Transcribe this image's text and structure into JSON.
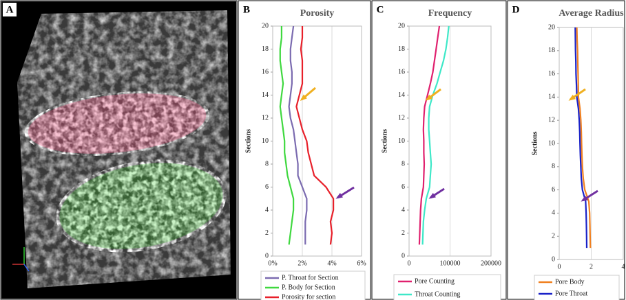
{
  "image_panel": {
    "label": "A"
  },
  "chart_data": [
    {
      "type": "line",
      "panel": "B",
      "title": "Porosity",
      "ylabel": "Sections",
      "legend": "bottom",
      "grid": true,
      "xlim": [
        0,
        6
      ],
      "xticks": [
        {
          "value": 0,
          "label": "0%"
        },
        {
          "value": 2,
          "label": "2%"
        },
        {
          "value": 4,
          "label": "4%"
        },
        {
          "value": 6,
          "label": "6%"
        }
      ],
      "ylim": [
        0,
        20
      ],
      "yticks": [
        0,
        2,
        4,
        6,
        8,
        10,
        12,
        14,
        16,
        18,
        20
      ],
      "y": [
        1,
        2,
        3,
        4,
        5,
        6,
        7,
        8,
        9,
        10,
        11,
        12,
        13,
        14,
        15,
        16,
        17,
        18,
        19,
        20
      ],
      "series": [
        {
          "name": "P. Throat for Section",
          "color": "#7b6bb0",
          "values": [
            2.2,
            2.2,
            2.2,
            2.3,
            2.3,
            2.0,
            1.7,
            1.7,
            1.6,
            1.5,
            1.4,
            1.2,
            1.1,
            1.2,
            1.3,
            1.3,
            1.2,
            1.2,
            1.3,
            1.4
          ]
        },
        {
          "name": "P. Body for Section",
          "color": "#3fd83f",
          "values": [
            1.1,
            1.2,
            1.3,
            1.4,
            1.4,
            1.2,
            1.0,
            0.9,
            0.8,
            0.8,
            0.7,
            0.6,
            0.5,
            0.6,
            0.7,
            0.6,
            0.5,
            0.5,
            0.6,
            0.6
          ]
        },
        {
          "name": "Porosity for section",
          "color": "#e8202a",
          "values": [
            3.9,
            4.0,
            3.9,
            4.1,
            4.1,
            3.6,
            2.8,
            2.6,
            2.4,
            2.3,
            2.0,
            1.8,
            1.6,
            1.8,
            2.0,
            2.0,
            2.0,
            1.9,
            2.0,
            2.0
          ]
        }
      ]
    },
    {
      "type": "line",
      "panel": "C",
      "title": "Frequency",
      "ylabel": "Sections",
      "legend": "bottom",
      "grid": true,
      "xlim": [
        0,
        200000
      ],
      "xticks": [
        0,
        100000,
        200000
      ],
      "ylim": [
        0,
        20
      ],
      "yticks": [
        0,
        2,
        4,
        6,
        8,
        10,
        12,
        14,
        16,
        18,
        20
      ],
      "y": [
        1,
        2,
        3,
        4,
        5,
        6,
        7,
        8,
        9,
        10,
        11,
        12,
        13,
        14,
        15,
        16,
        17,
        18,
        19,
        20
      ],
      "series": [
        {
          "name": "Pore Counting",
          "color": "#e0206e",
          "values": [
            25000,
            26000,
            27000,
            28000,
            30000,
            35000,
            36000,
            37000,
            36000,
            36000,
            35000,
            36000,
            38000,
            45000,
            52000,
            58000,
            62000,
            66000,
            70000,
            74000
          ]
        },
        {
          "name": "Throat Counting",
          "color": "#3ee8c8",
          "values": [
            33000,
            34000,
            35000,
            38000,
            42000,
            50000,
            52000,
            54000,
            52000,
            50000,
            48000,
            48000,
            50000,
            58000,
            68000,
            76000,
            84000,
            90000,
            94000,
            97000
          ]
        }
      ]
    },
    {
      "type": "line",
      "panel": "D",
      "title": "Average Radius",
      "ylabel": "Sections",
      "legend": "bottom",
      "grid": true,
      "xlim": [
        0,
        4
      ],
      "xticks": [
        0,
        2,
        4
      ],
      "ylim": [
        0,
        20
      ],
      "yticks": [
        0,
        2,
        4,
        6,
        8,
        10,
        12,
        14,
        16,
        18,
        20
      ],
      "y": [
        1,
        2,
        3,
        4,
        5,
        6,
        7,
        8,
        9,
        10,
        11,
        12,
        13,
        14,
        15,
        16,
        17,
        18,
        19,
        20
      ],
      "series": [
        {
          "name": "Pore Body",
          "color": "#f08020",
          "values": [
            1.95,
            1.93,
            1.92,
            1.9,
            1.85,
            1.6,
            1.5,
            1.45,
            1.42,
            1.4,
            1.38,
            1.35,
            1.3,
            1.2,
            1.19,
            1.18,
            1.16,
            1.15,
            1.12,
            1.1
          ]
        },
        {
          "name": "Pore Throat",
          "color": "#1a22c8",
          "values": [
            1.72,
            1.71,
            1.7,
            1.68,
            1.65,
            1.45,
            1.38,
            1.35,
            1.32,
            1.3,
            1.28,
            1.25,
            1.2,
            1.1,
            1.08,
            1.05,
            1.04,
            1.02,
            1.01,
            1.0
          ]
        }
      ]
    }
  ]
}
